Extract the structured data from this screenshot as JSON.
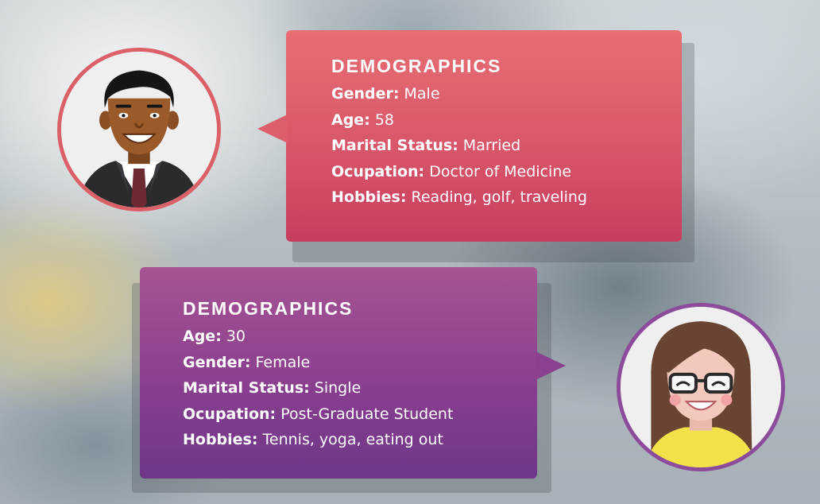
{
  "persona_male": {
    "title": "DEMOGRAPHICS",
    "fields": [
      {
        "label": "Gender:",
        "value": "Male"
      },
      {
        "label": "Age:",
        "value": "58"
      },
      {
        "label": "Marital Status:",
        "value": "Married"
      },
      {
        "label": "Ocupation:",
        "value": "Doctor of Medicine"
      },
      {
        "label": "Hobbies:",
        "value": "Reading, golf, traveling"
      }
    ],
    "accent": "#dc5d6c"
  },
  "persona_female": {
    "title": "DEMOGRAPHICS",
    "fields": [
      {
        "label": "Age:",
        "value": "30"
      },
      {
        "label": "Gender:",
        "value": "Female"
      },
      {
        "label": "Marital Status:",
        "value": "Single"
      },
      {
        "label": "Ocupation:",
        "value": "Post-Graduate Student"
      },
      {
        "label": "Hobbies:",
        "value": "Tennis, yoga, eating out"
      }
    ],
    "accent": "#8b4190"
  }
}
